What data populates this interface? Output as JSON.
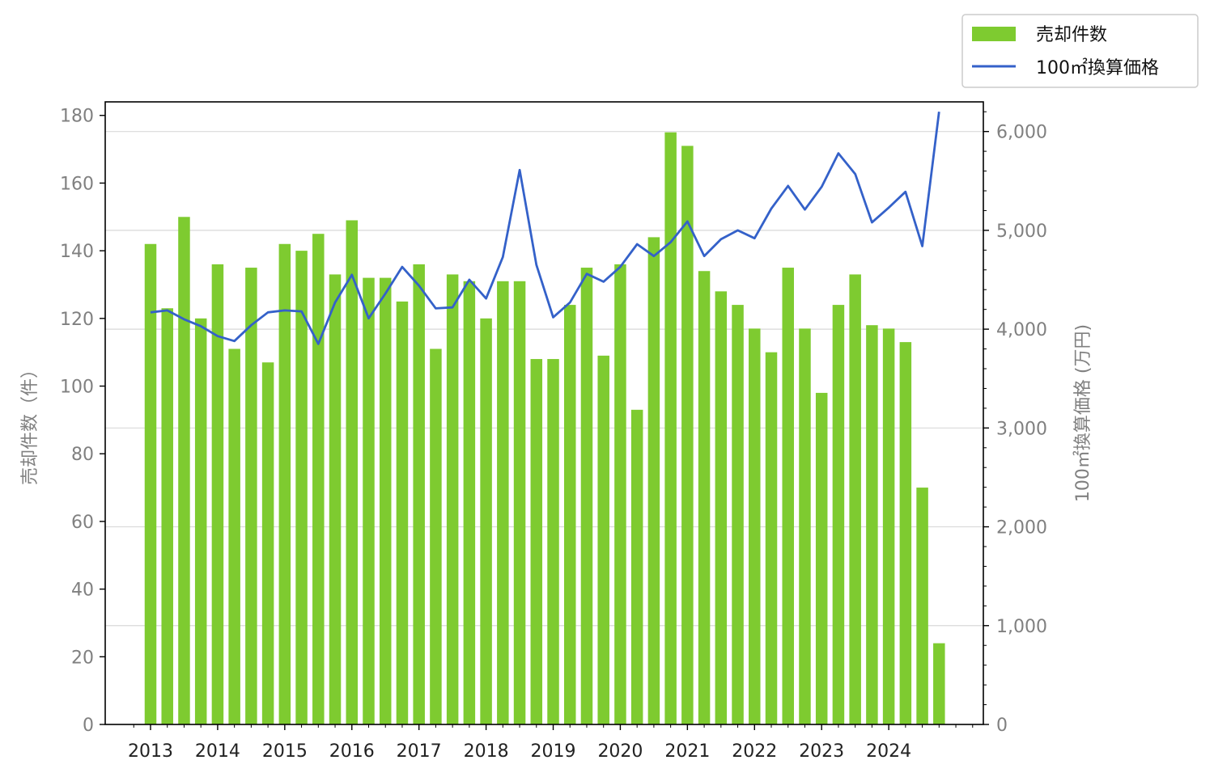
{
  "chart_data": {
    "type": "bar",
    "colors": {
      "bars": "#7ecb30",
      "line": "#3461c9",
      "grid": "#d9d9d9",
      "axis_text": "#808080"
    },
    "x_axis": {
      "tick_labels": [
        "2013",
        "2014",
        "2015",
        "2016",
        "2017",
        "2018",
        "2019",
        "2020",
        "2021",
        "2022",
        "2023",
        "2024"
      ]
    },
    "y_left": {
      "label": "売却件数（件）",
      "ylim": [
        0,
        184
      ],
      "tick_values": [
        0,
        20,
        40,
        60,
        80,
        100,
        120,
        140,
        160,
        180
      ],
      "tick_labels": [
        "0",
        "20",
        "40",
        "60",
        "80",
        "100",
        "120",
        "140",
        "160",
        "180"
      ]
    },
    "y_right": {
      "label": "100㎡換算価格 (万円)",
      "ylim": [
        0,
        6300
      ],
      "tick_values": [
        0,
        1000,
        2000,
        3000,
        4000,
        5000,
        6000
      ],
      "tick_labels": [
        "0",
        "1,000",
        "2,000",
        "3,000",
        "4,000",
        "5,000",
        "6,000"
      ]
    },
    "grid": "horizontal, right axis",
    "legend": {
      "position": "top-right",
      "bar_label": "売却件数",
      "line_label": "100㎡換算価格"
    },
    "series": [
      {
        "name": "売却件数",
        "kind": "bar",
        "axis": "left",
        "values": [
          142,
          123,
          150,
          120,
          136,
          111,
          135,
          107,
          142,
          140,
          145,
          133,
          149,
          132,
          132,
          125,
          136,
          111,
          133,
          131,
          120,
          131,
          131,
          108,
          108,
          124,
          135,
          109,
          136,
          93,
          144,
          175,
          171,
          134,
          128,
          124,
          117,
          110,
          135,
          117,
          98,
          124,
          133,
          118,
          117,
          113,
          70,
          24
        ]
      },
      {
        "name": "100㎡換算価格",
        "kind": "line",
        "axis": "right",
        "values": [
          4170,
          4190,
          4100,
          4030,
          3930,
          3880,
          4040,
          4170,
          4190,
          4180,
          3850,
          4270,
          4550,
          4110,
          4360,
          4630,
          4440,
          4210,
          4220,
          4500,
          4310,
          4730,
          5610,
          4650,
          4120,
          4270,
          4560,
          4480,
          4630,
          4860,
          4740,
          4880,
          5090,
          4740,
          4910,
          5000,
          4920,
          5220,
          5450,
          5210,
          5440,
          5780,
          5570,
          5080,
          5230,
          5390,
          4840,
          6200
        ]
      }
    ]
  }
}
